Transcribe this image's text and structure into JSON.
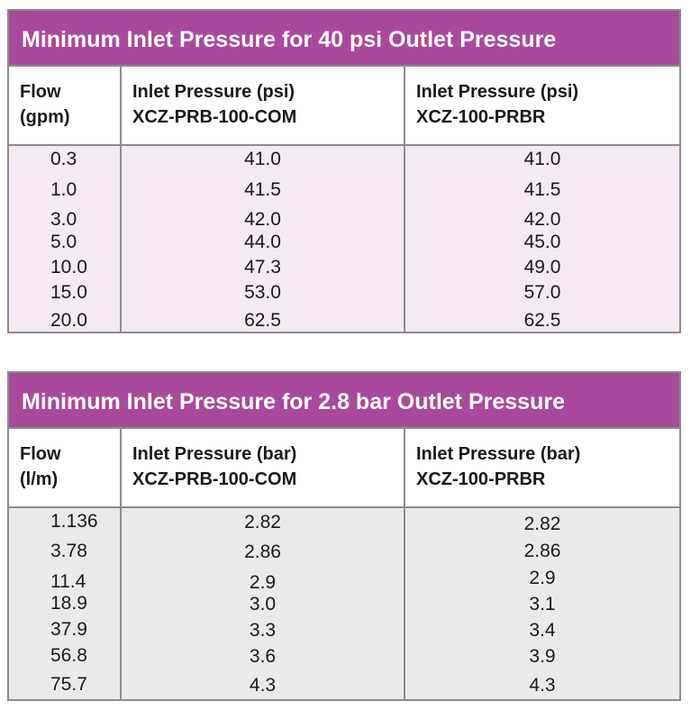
{
  "tables": [
    {
      "title": "Minimum Inlet Pressure for 40 psi Outlet Pressure",
      "headers": [
        {
          "line1": "Flow",
          "line2": "(gpm)"
        },
        {
          "line1": "Inlet Pressure (psi)",
          "line2": "XCZ-PRB-100-COM"
        },
        {
          "line1": "Inlet Pressure (psi)",
          "line2": "XCZ-100-PRBR"
        }
      ],
      "rows": [
        [
          "0.3",
          "41.0",
          "41.0"
        ],
        [
          "1.0",
          "41.5",
          "41.5"
        ],
        [
          "3.0",
          "42.0",
          "42.0"
        ],
        [
          "5.0",
          "44.0",
          "45.0"
        ],
        [
          "10.0",
          "47.3",
          "49.0"
        ],
        [
          "15.0",
          "53.0",
          "57.0"
        ],
        [
          "20.0",
          "62.5",
          "62.5"
        ]
      ],
      "colors": {
        "title_bg": "#a9499b",
        "body_bg": "#f3eaf4"
      }
    },
    {
      "title": "Minimum Inlet Pressure for 2.8 bar Outlet Pressure",
      "headers": [
        {
          "line1": "Flow",
          "line2": "(l/m)"
        },
        {
          "line1": "Inlet Pressure (bar)",
          "line2": "XCZ-PRB-100-COM"
        },
        {
          "line1": "Inlet Pressure (bar)",
          "line2": "XCZ-100-PRBR"
        }
      ],
      "rows": [
        [
          "1.136",
          "2.82",
          "2.82"
        ],
        [
          "3.78",
          "2.86",
          "2.86"
        ],
        [
          "11.4",
          "2.9",
          "2.9"
        ],
        [
          "18.9",
          "3.0",
          "3.1"
        ],
        [
          "37.9",
          "3.3",
          "3.4"
        ],
        [
          "56.8",
          "3.6",
          "3.9"
        ],
        [
          "75.7",
          "4.3",
          "4.3"
        ]
      ],
      "colors": {
        "title_bg": "#a9499b",
        "body_bg": "#e8eaeb"
      }
    }
  ]
}
